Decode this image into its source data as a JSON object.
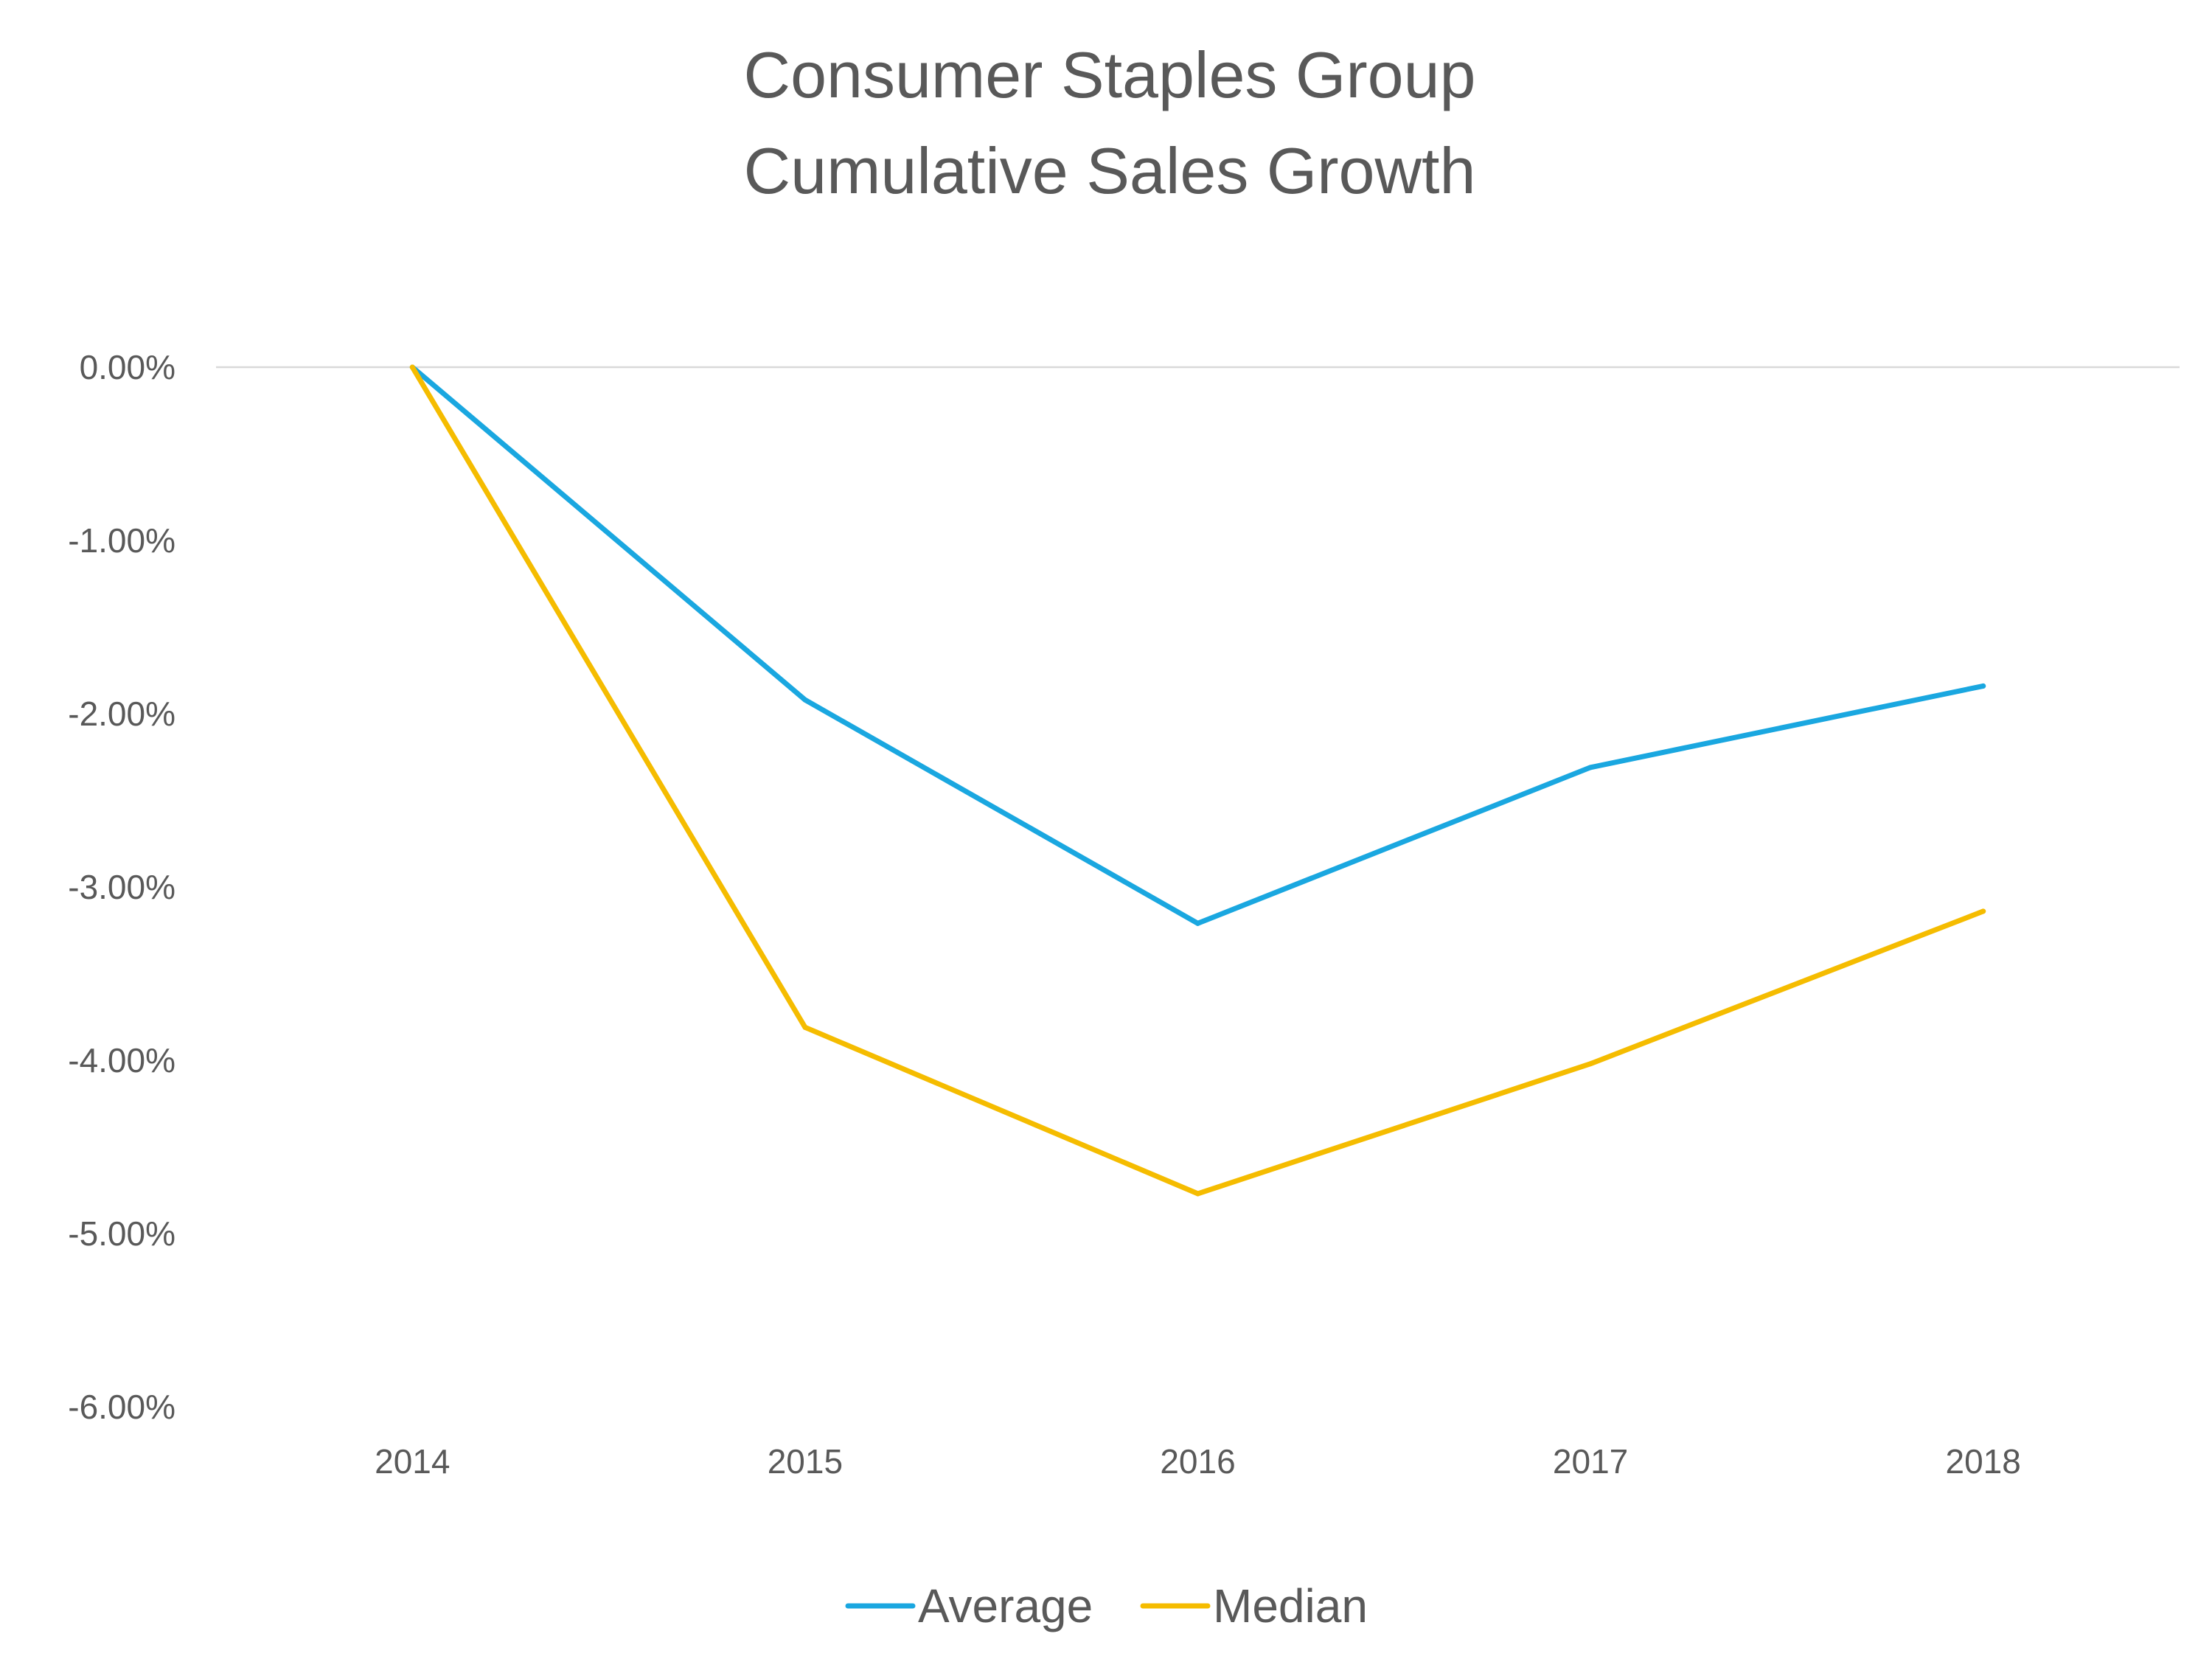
{
  "chart_data": {
    "type": "line",
    "title": [
      "Consumer Staples Group",
      "Cumulative Sales Growth"
    ],
    "xlabel": "",
    "ylabel": "",
    "categories": [
      "2014",
      "2015",
      "2016",
      "2017",
      "2018"
    ],
    "series": [
      {
        "name": "Average",
        "color": "#1AA7E0",
        "values": [
          0.0,
          -1.92,
          -3.21,
          -2.31,
          -1.84
        ]
      },
      {
        "name": "Median",
        "color": "#F5BC00",
        "values": [
          0.0,
          -3.81,
          -4.77,
          -4.02,
          -3.14
        ]
      }
    ],
    "ylim": [
      -6,
      0
    ],
    "y_ticks": [
      0,
      -1,
      -2,
      -3,
      -4,
      -5,
      -6
    ],
    "y_tick_labels": [
      "0.00%",
      "-1.00%",
      "-2.00%",
      "-3.00%",
      "-4.00%",
      "-5.00%",
      "-6.00%"
    ],
    "grid": "zero-line only",
    "legend_position": "bottom-center"
  }
}
